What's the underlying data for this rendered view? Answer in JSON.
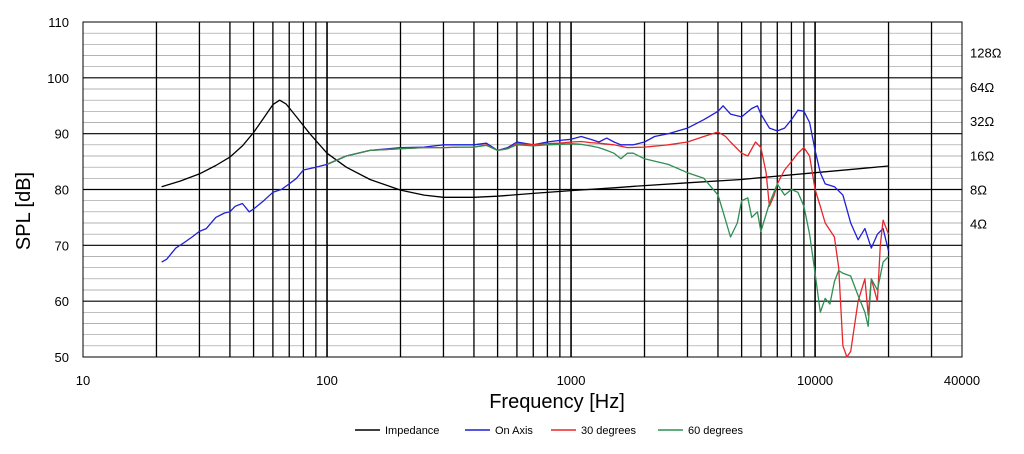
{
  "chart_data": {
    "type": "line",
    "xlabel": "Frequency [Hz]",
    "ylabel": "SPL [dB]",
    "x_scale": "log",
    "xlim": [
      10,
      40000
    ],
    "ylim": [
      50,
      110
    ],
    "x_ticks": [
      {
        "value": 10,
        "label": "10"
      },
      {
        "value": 100,
        "label": "100"
      },
      {
        "value": 1000,
        "label": "1000"
      },
      {
        "value": 10000,
        "label": "10000"
      },
      {
        "value": 40000,
        "label": "40000"
      }
    ],
    "y_ticks": [
      {
        "value": 50,
        "label": "50"
      },
      {
        "value": 60,
        "label": "60"
      },
      {
        "value": 70,
        "label": "70"
      },
      {
        "value": 80,
        "label": "80"
      },
      {
        "value": 90,
        "label": "90"
      },
      {
        "value": 100,
        "label": "100"
      },
      {
        "value": 110,
        "label": "110"
      }
    ],
    "y2_ticks": [
      {
        "value": 73.9,
        "label": "4Ω"
      },
      {
        "value": 80.0,
        "label": "8Ω"
      },
      {
        "value": 86.1,
        "label": "16Ω"
      },
      {
        "value": 92.3,
        "label": "32Ω"
      },
      {
        "value": 98.4,
        "label": "64Ω"
      },
      {
        "value": 104.5,
        "label": "128Ω"
      }
    ],
    "grid": true,
    "legend_position": "bottom",
    "series": [
      {
        "name": "Impedance",
        "color": "#000000",
        "points": [
          [
            21,
            80.5
          ],
          [
            25,
            81.5
          ],
          [
            30,
            82.8
          ],
          [
            35,
            84.3
          ],
          [
            40,
            85.8
          ],
          [
            45,
            87.8
          ],
          [
            50,
            90.2
          ],
          [
            55,
            92.8
          ],
          [
            60,
            95.2
          ],
          [
            64,
            96
          ],
          [
            68,
            95.3
          ],
          [
            75,
            93
          ],
          [
            85,
            90
          ],
          [
            100,
            86.5
          ],
          [
            120,
            84
          ],
          [
            150,
            81.8
          ],
          [
            200,
            79.9
          ],
          [
            250,
            79
          ],
          [
            300,
            78.6
          ],
          [
            400,
            78.6
          ],
          [
            500,
            78.8
          ],
          [
            700,
            79.3
          ],
          [
            1000,
            79.8
          ],
          [
            1500,
            80.3
          ],
          [
            2000,
            80.7
          ],
          [
            3000,
            81.2
          ],
          [
            5000,
            81.8
          ],
          [
            7000,
            82.4
          ],
          [
            10000,
            83
          ],
          [
            15000,
            83.7
          ],
          [
            20000,
            84.2
          ]
        ]
      },
      {
        "name": "On Axis",
        "color": "#1f1fd6",
        "points": [
          [
            21,
            67
          ],
          [
            22,
            67.5
          ],
          [
            24,
            69.5
          ],
          [
            26,
            70.5
          ],
          [
            28,
            71.5
          ],
          [
            30,
            72.5
          ],
          [
            32,
            73
          ],
          [
            35,
            75
          ],
          [
            38,
            75.8
          ],
          [
            40,
            76
          ],
          [
            42,
            77
          ],
          [
            45,
            77.5
          ],
          [
            48,
            76
          ],
          [
            50,
            76.5
          ],
          [
            55,
            78
          ],
          [
            60,
            79.5
          ],
          [
            65,
            80
          ],
          [
            70,
            81
          ],
          [
            75,
            82
          ],
          [
            80,
            83.5
          ],
          [
            90,
            84
          ],
          [
            100,
            84.5
          ],
          [
            120,
            86
          ],
          [
            150,
            87
          ],
          [
            200,
            87.5
          ],
          [
            250,
            87.6
          ],
          [
            300,
            88
          ],
          [
            350,
            88
          ],
          [
            400,
            88
          ],
          [
            450,
            88.3
          ],
          [
            500,
            87
          ],
          [
            550,
            87.5
          ],
          [
            600,
            88.5
          ],
          [
            700,
            88
          ],
          [
            800,
            88.5
          ],
          [
            900,
            88.8
          ],
          [
            1000,
            89
          ],
          [
            1100,
            89.5
          ],
          [
            1200,
            89
          ],
          [
            1300,
            88.5
          ],
          [
            1400,
            89.2
          ],
          [
            1500,
            88.5
          ],
          [
            1600,
            88
          ],
          [
            1800,
            88
          ],
          [
            2000,
            88.5
          ],
          [
            2200,
            89.5
          ],
          [
            2500,
            90
          ],
          [
            3000,
            91
          ],
          [
            3500,
            92.5
          ],
          [
            4000,
            94
          ],
          [
            4200,
            95
          ],
          [
            4500,
            93.5
          ],
          [
            5000,
            93
          ],
          [
            5500,
            94.5
          ],
          [
            5800,
            95
          ],
          [
            6000,
            93.5
          ],
          [
            6500,
            91
          ],
          [
            7000,
            90.5
          ],
          [
            7500,
            91
          ],
          [
            8000,
            92.5
          ],
          [
            8500,
            94.2
          ],
          [
            9000,
            94
          ],
          [
            9500,
            92
          ],
          [
            10000,
            87
          ],
          [
            10500,
            83
          ],
          [
            11000,
            81
          ],
          [
            12000,
            80.5
          ],
          [
            13000,
            79
          ],
          [
            14000,
            74
          ],
          [
            15000,
            71
          ],
          [
            16000,
            73
          ],
          [
            17000,
            69.5
          ],
          [
            18000,
            72
          ],
          [
            19000,
            73
          ],
          [
            20000,
            69
          ]
        ]
      },
      {
        "name": "30 degrees",
        "color": "#e8262b",
        "points": [
          [
            100,
            84.5
          ],
          [
            120,
            86
          ],
          [
            150,
            87
          ],
          [
            200,
            87.3
          ],
          [
            250,
            87.5
          ],
          [
            300,
            87.5
          ],
          [
            350,
            87.6
          ],
          [
            400,
            87.6
          ],
          [
            450,
            88
          ],
          [
            500,
            87
          ],
          [
            550,
            87.3
          ],
          [
            600,
            88.2
          ],
          [
            700,
            88
          ],
          [
            800,
            88.2
          ],
          [
            900,
            88.3
          ],
          [
            1000,
            88.5
          ],
          [
            1100,
            88.6
          ],
          [
            1200,
            88.4
          ],
          [
            1300,
            88.3
          ],
          [
            1500,
            88
          ],
          [
            1700,
            87.5
          ],
          [
            2000,
            87.6
          ],
          [
            2500,
            88
          ],
          [
            3000,
            88.5
          ],
          [
            3500,
            89.5
          ],
          [
            4000,
            90.3
          ],
          [
            4300,
            89.5
          ],
          [
            4500,
            88.5
          ],
          [
            5000,
            86.5
          ],
          [
            5300,
            86
          ],
          [
            5700,
            88.5
          ],
          [
            6000,
            87.5
          ],
          [
            6300,
            83
          ],
          [
            6500,
            77
          ],
          [
            6800,
            79
          ],
          [
            7000,
            81
          ],
          [
            7500,
            83.5
          ],
          [
            8000,
            85
          ],
          [
            8500,
            86.5
          ],
          [
            9000,
            87.5
          ],
          [
            9500,
            86
          ],
          [
            10000,
            80
          ],
          [
            10500,
            77
          ],
          [
            11000,
            74
          ],
          [
            12000,
            71.5
          ],
          [
            12500,
            66
          ],
          [
            13000,
            52
          ],
          [
            13500,
            50
          ],
          [
            14000,
            51
          ],
          [
            15000,
            60
          ],
          [
            16000,
            64
          ],
          [
            16500,
            57.5
          ],
          [
            17000,
            64
          ],
          [
            18000,
            60
          ],
          [
            18500,
            70
          ],
          [
            19000,
            74.5
          ],
          [
            20000,
            72
          ]
        ]
      },
      {
        "name": "60 degrees",
        "color": "#2e8f55",
        "points": [
          [
            100,
            84.5
          ],
          [
            120,
            86
          ],
          [
            150,
            87
          ],
          [
            200,
            87.3
          ],
          [
            250,
            87.5
          ],
          [
            300,
            87.5
          ],
          [
            350,
            87.6
          ],
          [
            400,
            87.6
          ],
          [
            450,
            87.9
          ],
          [
            500,
            87
          ],
          [
            550,
            87.3
          ],
          [
            600,
            88
          ],
          [
            700,
            87.8
          ],
          [
            800,
            88
          ],
          [
            900,
            88.1
          ],
          [
            1000,
            88.2
          ],
          [
            1100,
            88.1
          ],
          [
            1200,
            87.8
          ],
          [
            1300,
            87.5
          ],
          [
            1400,
            87
          ],
          [
            1500,
            86.5
          ],
          [
            1600,
            85.5
          ],
          [
            1700,
            86.5
          ],
          [
            1800,
            86.5
          ],
          [
            2000,
            85.5
          ],
          [
            2500,
            84.5
          ],
          [
            3000,
            83
          ],
          [
            3500,
            82
          ],
          [
            4000,
            79
          ],
          [
            4200,
            76
          ],
          [
            4500,
            71.5
          ],
          [
            4800,
            74
          ],
          [
            5000,
            78
          ],
          [
            5300,
            78.5
          ],
          [
            5500,
            75
          ],
          [
            5800,
            76
          ],
          [
            6000,
            72.5
          ],
          [
            6500,
            77.5
          ],
          [
            7000,
            81
          ],
          [
            7500,
            79
          ],
          [
            8000,
            80
          ],
          [
            8500,
            79.5
          ],
          [
            9000,
            77
          ],
          [
            9500,
            72
          ],
          [
            10000,
            65
          ],
          [
            10500,
            58
          ],
          [
            11000,
            60.5
          ],
          [
            11500,
            59.5
          ],
          [
            12000,
            63.5
          ],
          [
            12500,
            65.5
          ],
          [
            13000,
            65
          ],
          [
            14000,
            64.5
          ],
          [
            15000,
            61
          ],
          [
            16000,
            58
          ],
          [
            16500,
            55.5
          ],
          [
            17000,
            64
          ],
          [
            18000,
            62
          ],
          [
            19000,
            67
          ],
          [
            20000,
            68
          ]
        ]
      }
    ]
  }
}
